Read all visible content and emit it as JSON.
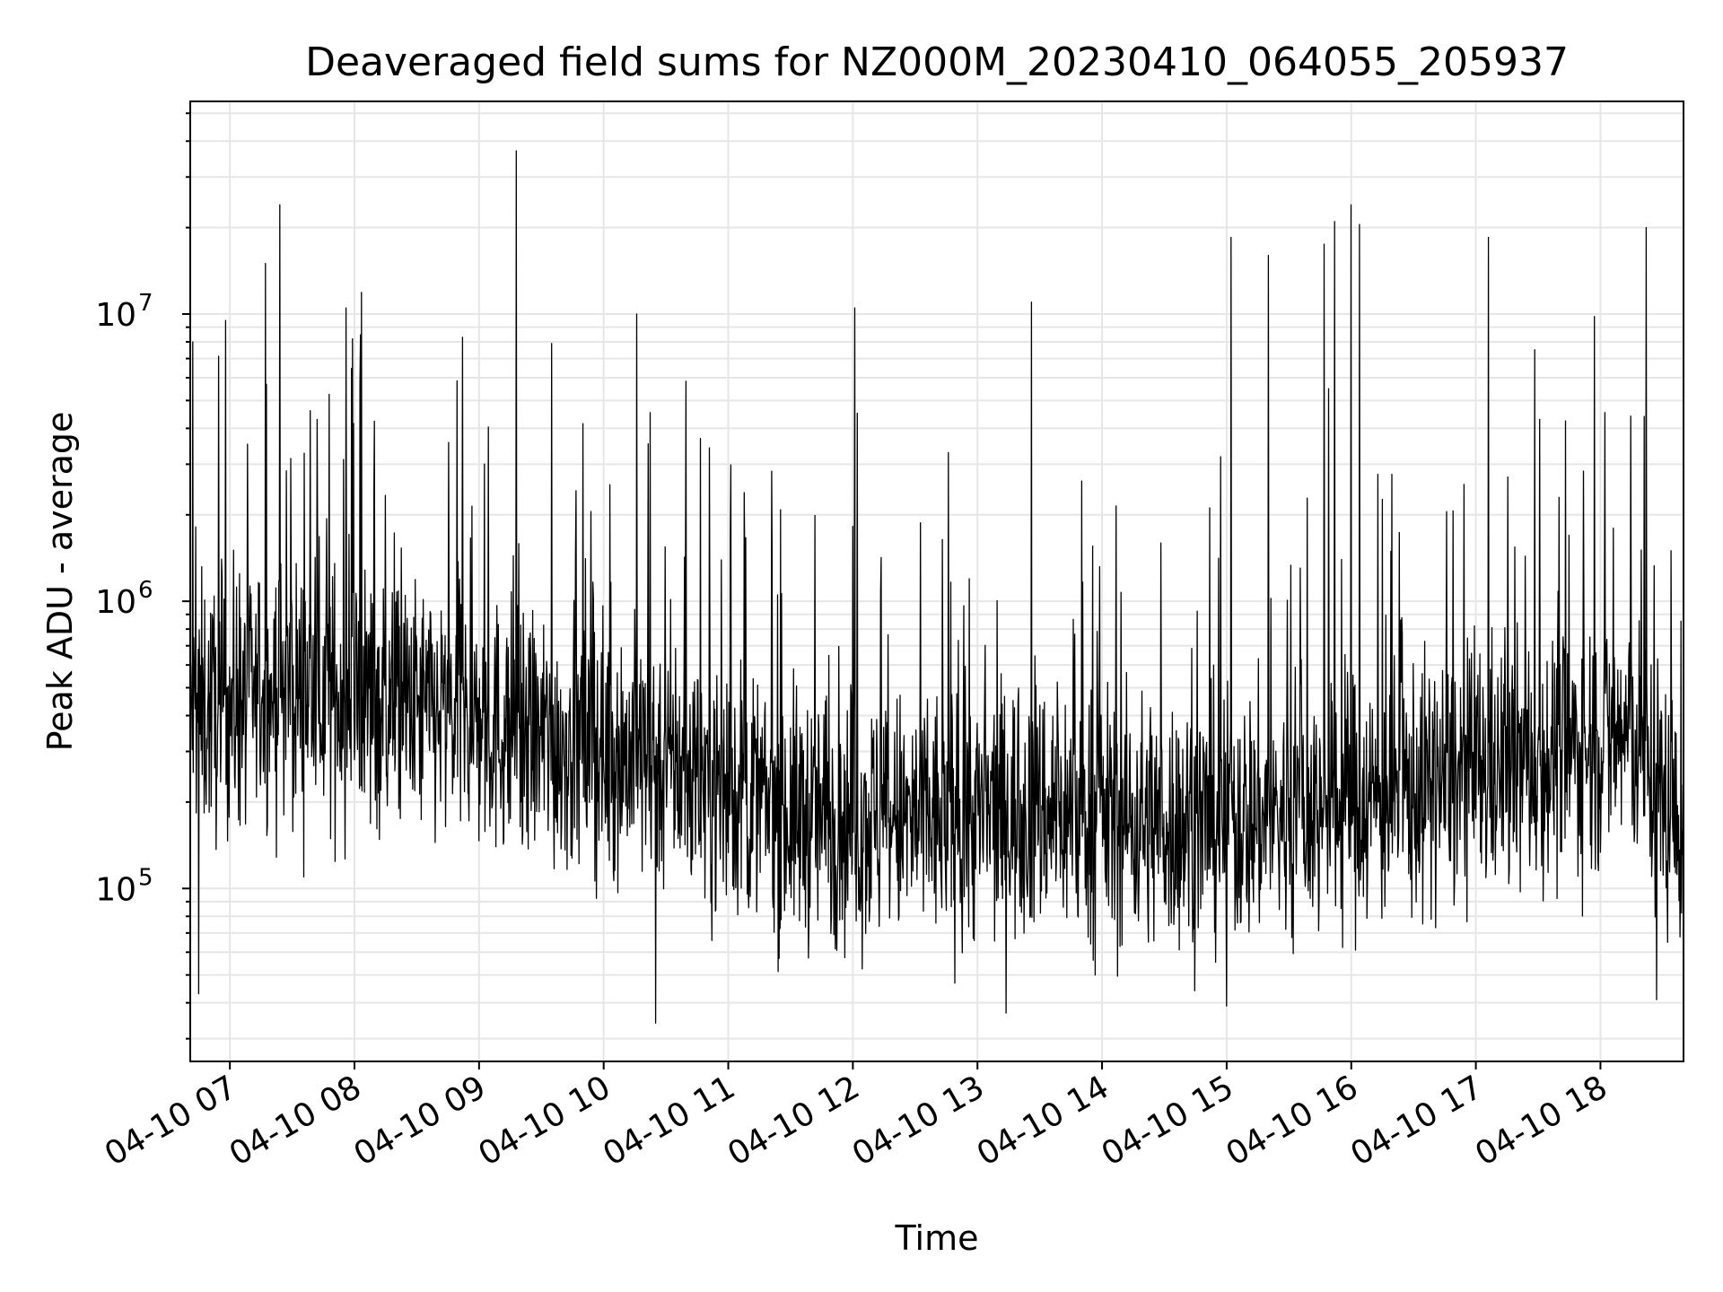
{
  "chart_data": {
    "type": "line",
    "title": "Deaveraged field sums for NZ000M_20230410_064055_205937",
    "xlabel": "Time",
    "ylabel": "Peak ADU - average",
    "yscale": "log",
    "ylim": [
      25000,
      55000000
    ],
    "xlim": [
      "2023-04-10T06:40:55",
      "2023-04-10T18:40:00"
    ],
    "grid": true,
    "legend": "none",
    "line_color": "#000000",
    "x_ticks": [
      {
        "value": "2023-04-10T07:00",
        "label": "04-10 07"
      },
      {
        "value": "2023-04-10T08:00",
        "label": "04-10 08"
      },
      {
        "value": "2023-04-10T09:00",
        "label": "04-10 09"
      },
      {
        "value": "2023-04-10T10:00",
        "label": "04-10 10"
      },
      {
        "value": "2023-04-10T11:00",
        "label": "04-10 11"
      },
      {
        "value": "2023-04-10T12:00",
        "label": "04-10 12"
      },
      {
        "value": "2023-04-10T13:00",
        "label": "04-10 13"
      },
      {
        "value": "2023-04-10T14:00",
        "label": "04-10 14"
      },
      {
        "value": "2023-04-10T15:00",
        "label": "04-10 15"
      },
      {
        "value": "2023-04-10T16:00",
        "label": "04-10 16"
      },
      {
        "value": "2023-04-10T17:00",
        "label": "04-10 17"
      },
      {
        "value": "2023-04-10T18:00",
        "label": "04-10 18"
      }
    ],
    "y_ticks": [
      {
        "value": 100000,
        "base": "10",
        "exp": "5"
      },
      {
        "value": 1000000,
        "base": "10",
        "exp": "6"
      },
      {
        "value": 10000000,
        "base": "10",
        "exp": "7"
      }
    ],
    "series": [
      {
        "baseline_profile": [
          {
            "x": "2023-04-10T06:40",
            "y": 400000
          },
          {
            "x": "2023-04-10T07:30",
            "y": 500000
          },
          {
            "x": "2023-04-10T08:30",
            "y": 420000
          },
          {
            "x": "2023-04-10T09:30",
            "y": 330000
          },
          {
            "x": "2023-04-10T10:30",
            "y": 280000
          },
          {
            "x": "2023-04-10T11:30",
            "y": 180000
          },
          {
            "x": "2023-04-10T12:30",
            "y": 170000
          },
          {
            "x": "2023-04-10T13:30",
            "y": 190000
          },
          {
            "x": "2023-04-10T14:30",
            "y": 170000
          },
          {
            "x": "2023-04-10T15:30",
            "y": 180000
          },
          {
            "x": "2023-04-10T16:30",
            "y": 220000
          },
          {
            "x": "2023-04-10T17:30",
            "y": 280000
          },
          {
            "x": "2023-04-10T18:15",
            "y": 350000
          },
          {
            "x": "2023-04-10T18:40",
            "y": 150000
          }
        ],
        "peaks": [
          {
            "x": "2023-04-10T06:42",
            "y": 8000000
          },
          {
            "x": "2023-04-10T06:58",
            "y": 9500000
          },
          {
            "x": "2023-04-10T07:17",
            "y": 15000000
          },
          {
            "x": "2023-04-10T07:24",
            "y": 24000000
          },
          {
            "x": "2023-04-10T07:59",
            "y": 8200000
          },
          {
            "x": "2023-04-10T08:52",
            "y": 8300000
          },
          {
            "x": "2023-04-10T09:18",
            "y": 37000000
          },
          {
            "x": "2023-04-10T09:35",
            "y": 7900000
          },
          {
            "x": "2023-04-10T10:16",
            "y": 10000000
          },
          {
            "x": "2023-04-10T12:01",
            "y": 10500000
          },
          {
            "x": "2023-04-10T13:26",
            "y": 11000000
          },
          {
            "x": "2023-04-10T15:02",
            "y": 18500000
          },
          {
            "x": "2023-04-10T15:20",
            "y": 16000000
          },
          {
            "x": "2023-04-10T15:47",
            "y": 17500000
          },
          {
            "x": "2023-04-10T15:52",
            "y": 21000000
          },
          {
            "x": "2023-04-10T16:00",
            "y": 24000000
          },
          {
            "x": "2023-04-10T16:04",
            "y": 20500000
          },
          {
            "x": "2023-04-10T17:06",
            "y": 18500000
          },
          {
            "x": "2023-04-10T17:57",
            "y": 9800000
          },
          {
            "x": "2023-04-10T18:22",
            "y": 20000000
          }
        ],
        "dips": [
          {
            "x": "2023-04-10T06:45",
            "y": 43000
          },
          {
            "x": "2023-04-10T10:25",
            "y": 34000
          },
          {
            "x": "2023-04-10T15:00",
            "y": 39000
          },
          {
            "x": "2023-04-10T18:27",
            "y": 41000
          }
        ]
      }
    ]
  }
}
